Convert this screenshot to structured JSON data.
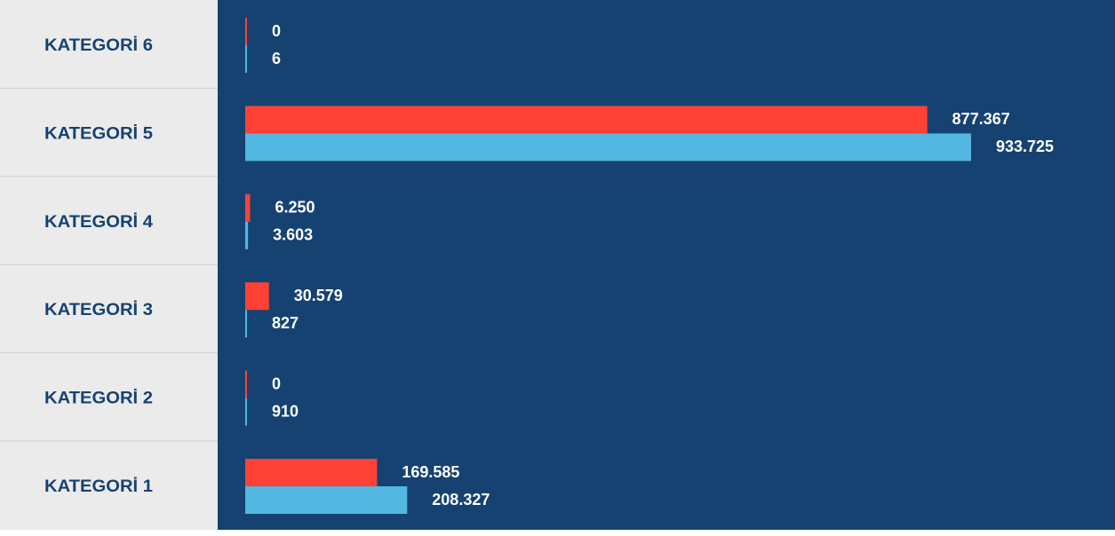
{
  "chart_data": {
    "type": "bar",
    "categories": [
      "KATEGORİ 6",
      "KATEGORİ 5",
      "KATEGORİ 4",
      "KATEGORİ 3",
      "KATEGORİ 2",
      "KATEGORİ 1"
    ],
    "series": [
      {
        "color": "#ff4136",
        "values": [
          0,
          877367,
          6250,
          30579,
          0,
          169585
        ],
        "value_labels": [
          "0",
          "877.367",
          "6.250",
          "30.579",
          "0",
          "169.585"
        ]
      },
      {
        "color": "#52b8e2",
        "values": [
          6,
          933725,
          3603,
          827,
          910,
          208327
        ],
        "value_labels": [
          "6",
          "933.725",
          "3.603",
          "827",
          "910",
          "208.327"
        ]
      }
    ]
  }
}
